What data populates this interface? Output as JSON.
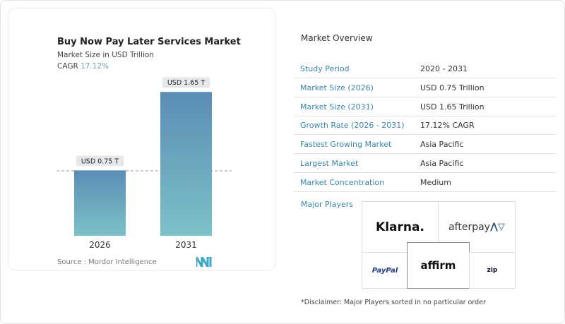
{
  "chart_data": {
    "type": "bar",
    "title": "Buy Now Pay Later Services Market",
    "subtitle": "Market Size in USD Trillion",
    "cagr_label": "CAGR",
    "cagr_value": "17.12%",
    "categories": [
      "2026",
      "2031"
    ],
    "values": [
      0.75,
      1.65
    ],
    "data_labels": [
      "USD 0.75 T",
      "USD 1.65 T"
    ],
    "colors": {
      "bar_top": "#5b8db5",
      "bar_bottom": "#7cc1c8"
    },
    "grid": false,
    "source": "Source :  Mordor Intelligence"
  },
  "overview": {
    "title": "Market Overview",
    "rows": [
      {
        "label": "Study Period",
        "value": "2020 - 2031"
      },
      {
        "label": "Market Size (2026)",
        "value": "USD 0.75 Trillion"
      },
      {
        "label": "Market Size (2031)",
        "value": "USD 1.65 Trillion"
      },
      {
        "label": "Growth Rate (2026 - 2031)",
        "value": "17.12% CAGR"
      },
      {
        "label": "Fastest Growing Market",
        "value": "Asia Pacific"
      },
      {
        "label": "Largest Market",
        "value": "Asia Pacific"
      },
      {
        "label": "Market Concentration",
        "value": "Medium"
      }
    ],
    "major_players_label": "Major Players",
    "players": [
      "Klarna.",
      "afterpay",
      "PayPal",
      "affirm",
      "zip"
    ],
    "disclaimer": "*Disclaimer: Major Players sorted in no particular order"
  }
}
